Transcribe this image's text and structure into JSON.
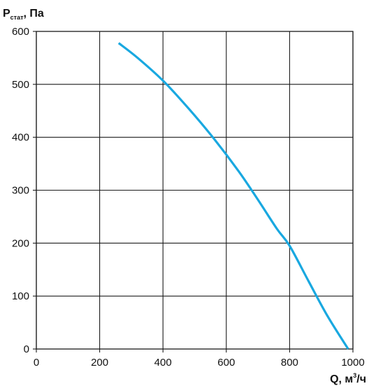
{
  "chart_data": {
    "type": "line",
    "ylabel_main": "P",
    "ylabel_sub": "стат",
    "ylabel_rest": ", Па",
    "xlabel_main": "Q, м",
    "xlabel_sup": "3",
    "xlabel_rest": "/ч",
    "xlim": [
      0,
      1000
    ],
    "ylim": [
      0,
      600
    ],
    "x_ticks": [
      0,
      200,
      400,
      600,
      800,
      1000
    ],
    "y_ticks": [
      0,
      100,
      200,
      300,
      400,
      500,
      600
    ],
    "grid": true,
    "series": [
      {
        "color": "#19a8e0",
        "x": [
          260,
          320,
          400,
          480,
          560,
          640,
          700,
          760,
          800,
          860,
          920,
          985
        ],
        "y": [
          578,
          550,
          507,
          455,
          398,
          335,
          282,
          227,
          195,
          128,
          62,
          0
        ]
      }
    ]
  }
}
